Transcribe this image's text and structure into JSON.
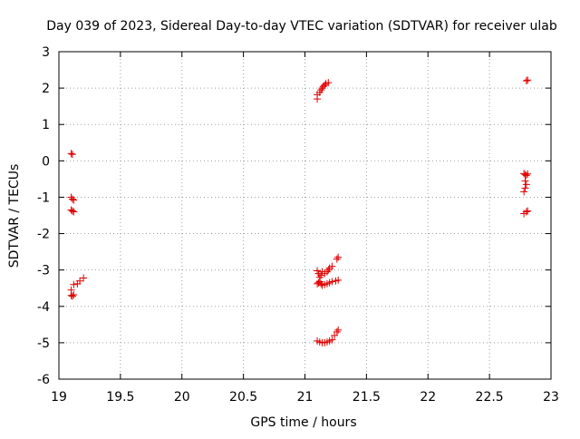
{
  "chart_data": {
    "type": "scatter",
    "title": "Day 039 of 2023, Sidereal Day-to-day VTEC variation (SDTVAR) for receiver ulab",
    "xlabel": "GPS time / hours",
    "ylabel": "SDTVAR / TECUs",
    "xlim": [
      19,
      23
    ],
    "ylim": [
      -6,
      3
    ],
    "x_ticks": [
      19,
      19.5,
      20,
      20.5,
      21,
      21.5,
      22,
      22.5,
      23
    ],
    "x_tick_labels": [
      "19",
      "19.5",
      "20",
      "20.5",
      "21",
      "21.5",
      "22",
      "22.5",
      "23"
    ],
    "y_ticks": [
      -6,
      -5,
      -4,
      -3,
      -2,
      -1,
      0,
      1,
      2,
      3
    ],
    "y_tick_labels": [
      "-6",
      "-5",
      "-4",
      "-3",
      "-2",
      "-1",
      "0",
      "1",
      "2",
      "3"
    ],
    "grid": true,
    "marker": "plus",
    "color": "#e00000",
    "series": [
      {
        "points": [
          [
            19.1,
            0.2
          ],
          [
            19.11,
            0.18
          ],
          [
            19.1,
            -1.0
          ],
          [
            19.11,
            -1.05
          ],
          [
            19.12,
            -1.08
          ],
          [
            19.1,
            -1.35
          ],
          [
            19.11,
            -1.38
          ],
          [
            19.12,
            -1.4
          ],
          [
            19.1,
            -3.7
          ],
          [
            19.11,
            -3.72
          ],
          [
            19.12,
            -3.68
          ],
          [
            19.1,
            -3.55
          ],
          [
            19.12,
            -3.4
          ],
          [
            19.15,
            -3.38
          ],
          [
            19.17,
            -3.3
          ],
          [
            19.2,
            -3.22
          ],
          [
            21.1,
            1.7
          ],
          [
            21.1,
            1.82
          ],
          [
            21.12,
            1.88
          ],
          [
            21.13,
            1.95
          ],
          [
            21.14,
            2.0
          ],
          [
            21.15,
            2.05
          ],
          [
            21.16,
            2.08
          ],
          [
            21.17,
            2.12
          ],
          [
            21.19,
            2.15
          ],
          [
            21.1,
            -3.02
          ],
          [
            21.11,
            -3.1
          ],
          [
            21.12,
            -3.2
          ],
          [
            21.13,
            -3.15
          ],
          [
            21.14,
            -3.05
          ],
          [
            21.16,
            -3.1
          ],
          [
            21.18,
            -3.05
          ],
          [
            21.19,
            -3.0
          ],
          [
            21.2,
            -2.95
          ],
          [
            21.22,
            -2.9
          ],
          [
            21.26,
            -2.7
          ],
          [
            21.27,
            -2.65
          ],
          [
            21.1,
            -3.38
          ],
          [
            21.11,
            -3.35
          ],
          [
            21.12,
            -3.32
          ],
          [
            21.13,
            -3.38
          ],
          [
            21.14,
            -3.42
          ],
          [
            21.16,
            -3.4
          ],
          [
            21.18,
            -3.38
          ],
          [
            21.2,
            -3.35
          ],
          [
            21.22,
            -3.32
          ],
          [
            21.25,
            -3.3
          ],
          [
            21.27,
            -3.28
          ],
          [
            21.1,
            -4.95
          ],
          [
            21.12,
            -4.98
          ],
          [
            21.14,
            -5.0
          ],
          [
            21.16,
            -5.0
          ],
          [
            21.18,
            -4.98
          ],
          [
            21.2,
            -4.95
          ],
          [
            21.22,
            -4.92
          ],
          [
            21.24,
            -4.8
          ],
          [
            21.26,
            -4.7
          ],
          [
            21.27,
            -4.65
          ],
          [
            22.8,
            2.2
          ],
          [
            22.81,
            2.22
          ],
          [
            22.78,
            -0.35
          ],
          [
            22.79,
            -0.38
          ],
          [
            22.8,
            -0.4
          ],
          [
            22.81,
            -0.36
          ],
          [
            22.79,
            -0.55
          ],
          [
            22.8,
            -0.65
          ],
          [
            22.79,
            -0.75
          ],
          [
            22.78,
            -0.85
          ],
          [
            22.78,
            -1.45
          ],
          [
            22.8,
            -1.4
          ],
          [
            22.81,
            -1.38
          ]
        ]
      }
    ]
  }
}
